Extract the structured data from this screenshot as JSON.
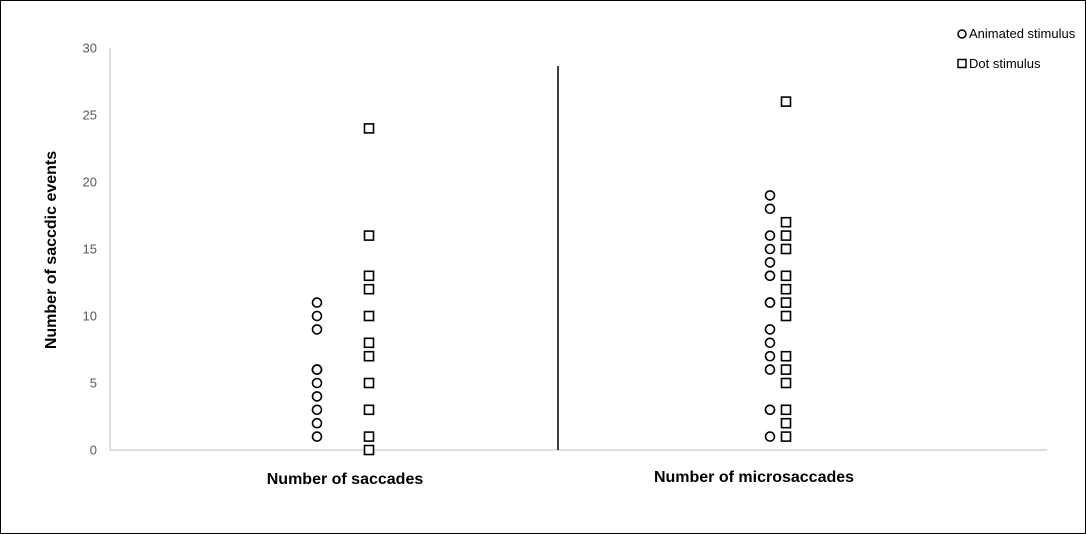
{
  "chart_data": {
    "type": "scatter",
    "title": "",
    "xlabel": "",
    "ylabel": "Number of saccdic events",
    "ylim": [
      0,
      30
    ],
    "yticks": [
      0,
      5,
      10,
      15,
      20,
      25,
      30
    ],
    "categories": [
      "Number of saccades",
      "Number of microsaccades"
    ],
    "grid": false,
    "legend_position": "top-right",
    "series": [
      {
        "name": "Animated stimulus",
        "marker": "circle",
        "color": "#000000",
        "values": [
          [
            1,
            2,
            3,
            4,
            5,
            6,
            6,
            6,
            9,
            10,
            11
          ],
          [
            1,
            3,
            3,
            6,
            7,
            8,
            9,
            11,
            11,
            13,
            13,
            14,
            15,
            16,
            18,
            19
          ]
        ]
      },
      {
        "name": "Dot stimulus",
        "marker": "square",
        "color": "#000000",
        "values": [
          [
            0,
            1,
            3,
            5,
            7,
            8,
            10,
            12,
            13,
            16,
            24
          ],
          [
            1,
            2,
            3,
            5,
            6,
            7,
            10,
            11,
            12,
            13,
            15,
            16,
            17,
            26
          ]
        ]
      }
    ]
  }
}
